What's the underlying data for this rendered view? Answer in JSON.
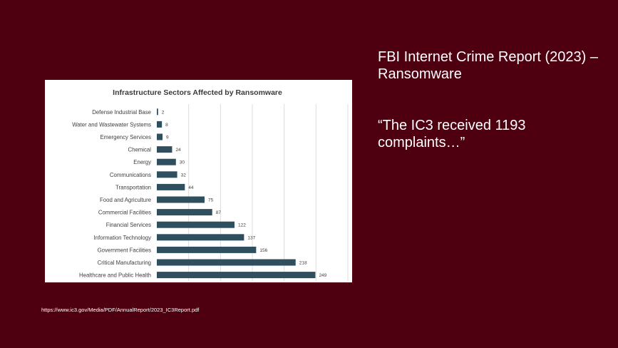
{
  "slide": {
    "title": "FBI Internet Crime Report (2023) – Ransomware",
    "quote": "“The IC3 received 1193 complaints…”",
    "source": "https://www.ic3.gov/Media/PDF/AnnualReport/2023_IC3Report.pdf"
  },
  "colors": {
    "background": "#4f0010",
    "bar": "#2f4f5f",
    "text_light": "#ffffff"
  },
  "chart_data": {
    "type": "bar",
    "orientation": "horizontal",
    "title": "Infrastructure Sectors Affected by Ransomware",
    "categories": [
      "Defense Industrial Base",
      "Water and Wastewater Systems",
      "Emergency Services",
      "Chemical",
      "Energy",
      "Communications",
      "Transportation",
      "Food and Agriculture",
      "Commercial Facilities",
      "Financial Services",
      "Information Technology",
      "Government Facilities",
      "Critical Manufacturing",
      "Healthcare and Public Health"
    ],
    "values": [
      2,
      8,
      9,
      24,
      30,
      32,
      44,
      75,
      87,
      122,
      137,
      156,
      218,
      249
    ],
    "xlim": [
      0,
      300
    ],
    "grid": true,
    "data_labels": true
  }
}
